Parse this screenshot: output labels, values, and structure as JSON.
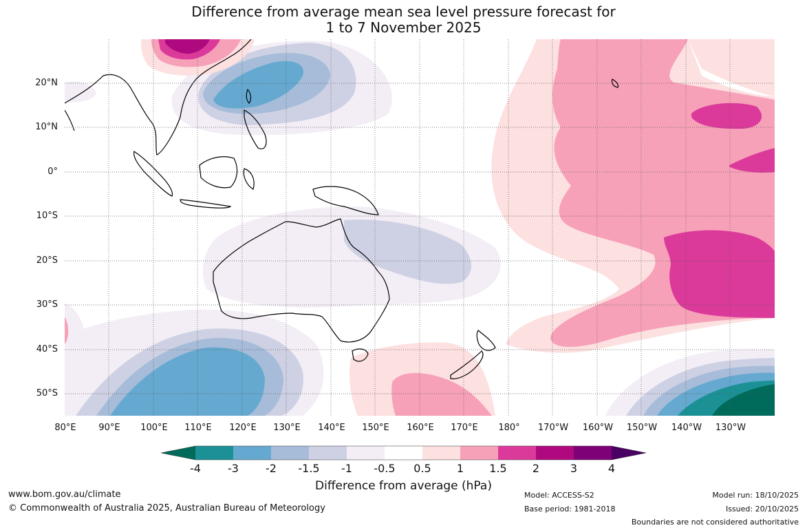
{
  "title": {
    "line1": "Difference from average mean sea level pressure forecast for",
    "line2": "1 to 7 November 2025"
  },
  "map": {
    "latitude_labels": [
      "20°N",
      "10°N",
      "0°",
      "10°S",
      "20°S",
      "30°S",
      "40°S",
      "50°S"
    ],
    "longitude_labels": [
      "80°E",
      "90°E",
      "100°E",
      "110°E",
      "120°E",
      "130°E",
      "140°E",
      "150°E",
      "160°E",
      "170°E",
      "180°",
      "170°W",
      "160°W",
      "150°W",
      "140°W",
      "130°W"
    ]
  },
  "colorbar": {
    "tick_labels": [
      "-4",
      "-3",
      "-2",
      "-1.5",
      "-1",
      "-0.5",
      "0.5",
      "1",
      "1.5",
      "2",
      "3",
      "4"
    ],
    "colors": [
      "#006b5a",
      "#1b9196",
      "#65a9d0",
      "#a6bcd9",
      "#ced1e4",
      "#f3eef6",
      "#ffffff",
      "#fde0e0",
      "#f7a1b8",
      "#db3a9b",
      "#b0097f",
      "#7e0177",
      "#4b0063"
    ],
    "label": "Difference from average (hPa)"
  },
  "footer": {
    "website": "www.bom.gov.au/climate",
    "copyright": "© Commonwealth of Australia 2025, Australian Bureau of Meteorology",
    "model": "Model: ACCESS-S2",
    "base_period": "Base period: 1981-2018",
    "model_run": "Model run: 18/10/2025",
    "issued": "Issued: 20/10/2025",
    "disclaimer": "Boundaries are not considered authoritative"
  }
}
